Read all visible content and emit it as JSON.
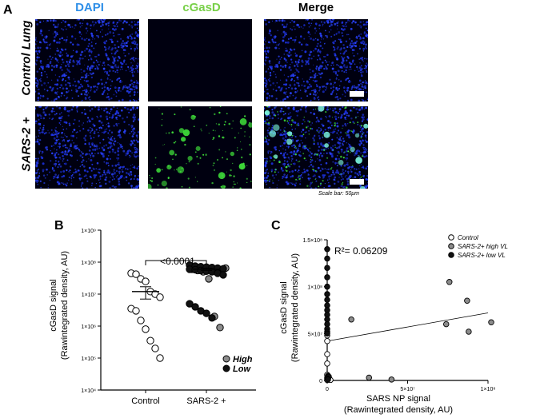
{
  "panel_a": {
    "letter": "A",
    "columns": [
      "DAPI",
      "cGasD",
      "Merge"
    ],
    "column_colors": [
      "#2f8fe8",
      "#78d048",
      "#000000"
    ],
    "rows": [
      "Control Lung",
      "SARS-2 +"
    ],
    "scale_caption": "Scale bar: 50μm"
  },
  "panel_b": {
    "letter": "B"
  },
  "panel_c": {
    "letter": "C"
  },
  "chart_data": [
    {
      "type": "scatter",
      "title": "",
      "ylabel_line1": "cGasD signal",
      "ylabel_line2": "(Rawintegrated density, AU)",
      "xlabel": "",
      "yscale": "log",
      "ylim": [
        10000,
        1000000000
      ],
      "y_ticks": [
        "1×10⁴",
        "1×10⁵",
        "1×10⁶",
        "1×10⁷",
        "1×10⁸",
        "1×10⁹"
      ],
      "categories": [
        "Control",
        "SARS-2 +"
      ],
      "p_value": "<0.0001",
      "legend": [
        {
          "label": "High",
          "color": "#8c8c8c"
        },
        {
          "label": "Low",
          "color": "#111111"
        }
      ],
      "series": [
        {
          "name": "Control",
          "values": [
            45000000,
            42000000,
            30000000,
            25000000,
            12000000,
            10000000,
            8000000,
            3500000,
            3000000,
            1500000,
            800000,
            350000,
            200000,
            100000
          ]
        },
        {
          "name": "High",
          "values": [
            60000000,
            55000000,
            50000000,
            30000000,
            2000000,
            900000,
            65000000
          ]
        },
        {
          "name": "Low",
          "values": [
            80000000,
            75000000,
            72000000,
            70000000,
            68000000,
            65000000,
            62000000,
            60000000,
            58000000,
            55000000,
            52000000,
            50000000,
            45000000,
            40000000,
            5000000,
            4000000,
            3000000,
            2500000,
            1800000
          ]
        }
      ],
      "means": [
        {
          "value": 12000000,
          "sem_low": 7000000,
          "sem_high": 17000000
        },
        {
          "value": 60000000,
          "sem_low": 55000000,
          "sem_high": 65000000
        }
      ]
    },
    {
      "type": "scatter",
      "title": "",
      "ylabel_line1": "cGasD signal",
      "ylabel_line2": "(Rawintegrated density, AU)",
      "xlabel_line1": "SARS NP signal",
      "xlabel_line2": "(Rawintegrated density, AU)",
      "xlim": [
        0,
        100000000
      ],
      "ylim": [
        0,
        150000000
      ],
      "x_ticks": [
        {
          "value": 0,
          "label": "0"
        },
        {
          "value": 50000000,
          "label": "5×10⁷"
        },
        {
          "value": 100000000,
          "label": "1×10⁸"
        }
      ],
      "y_ticks": [
        {
          "value": 0,
          "label": "0"
        },
        {
          "value": 50000000,
          "label": "5×10⁷"
        },
        {
          "value": 100000000,
          "label": "1×10⁸"
        },
        {
          "value": 150000000,
          "label": "1.5×10⁸"
        }
      ],
      "annotation": "R²= 0.06209",
      "fit_line": {
        "x0": 0,
        "y0": 42000000,
        "x1": 100000000,
        "y1": 72000000
      },
      "legend": [
        {
          "label": "Control",
          "fill": "#ffffff"
        },
        {
          "label": "SARS-2+ high VL",
          "fill": "#8c8c8c"
        },
        {
          "label": "SARS-2+ low VL",
          "fill": "#111111"
        }
      ],
      "series": [
        {
          "name": "Control",
          "points": [
            [
              0,
              48000000
            ],
            [
              0,
              42000000
            ],
            [
              0,
              28000000
            ],
            [
              0,
              18000000
            ],
            [
              0,
              6000000
            ],
            [
              0,
              3000000
            ],
            [
              500000,
              2000000
            ],
            [
              1000000,
              1000000
            ],
            [
              0,
              500000
            ],
            [
              2000000,
              500000
            ]
          ]
        },
        {
          "name": "SARS-2+ high VL",
          "points": [
            [
              15000000,
              65000000
            ],
            [
              76000000,
              105000000
            ],
            [
              87000000,
              85000000
            ],
            [
              74000000,
              60000000
            ],
            [
              88000000,
              52000000
            ],
            [
              102000000,
              62000000
            ],
            [
              26000000,
              3000000
            ],
            [
              40000000,
              1000000
            ]
          ]
        },
        {
          "name": "SARS-2+ low VL",
          "points": [
            [
              0,
              140000000
            ],
            [
              0,
              130000000
            ],
            [
              0,
              120000000
            ],
            [
              0,
              110000000
            ],
            [
              0,
              100000000
            ],
            [
              0,
              92000000
            ],
            [
              0,
              86000000
            ],
            [
              0,
              80000000
            ],
            [
              0,
              75000000
            ],
            [
              0,
              70000000
            ],
            [
              0,
              65000000
            ],
            [
              0,
              60000000
            ],
            [
              0,
              55000000
            ],
            [
              0,
              52000000
            ],
            [
              0,
              50000000
            ],
            [
              500000,
              5000000
            ],
            [
              1000000,
              4000000
            ],
            [
              0,
              2000000
            ],
            [
              500000,
              1000000
            ]
          ]
        }
      ]
    }
  ]
}
